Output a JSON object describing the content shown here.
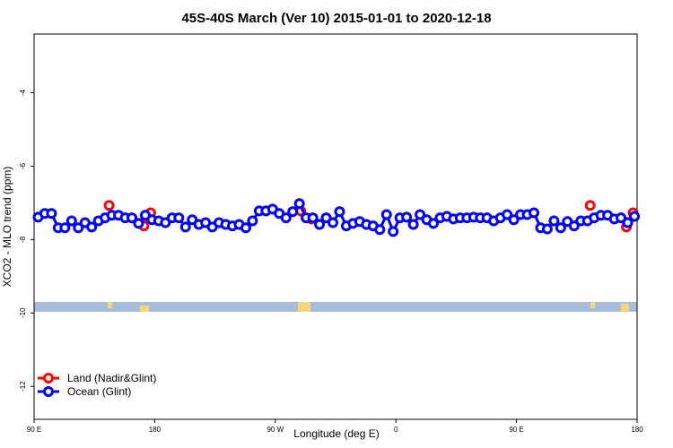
{
  "chart_data": {
    "type": "line",
    "title": "45S-40S March (Ver 10)   2015-01-01 to 2020-12-18",
    "x_label": "Longitude (deg E)",
    "y_label": "XCO2 - MLO trend (ppm)",
    "xlim": [
      90,
      540
    ],
    "xticks": [
      {
        "value": 90,
        "label": "90 E"
      },
      {
        "value": 180,
        "label": "180"
      },
      {
        "value": 270,
        "label": "90 W"
      },
      {
        "value": 360,
        "label": "0"
      },
      {
        "value": 450,
        "label": "90 E"
      },
      {
        "value": 540,
        "label": "180"
      }
    ],
    "ylim": [
      -12.9,
      -2.4
    ],
    "yticks": [
      -4,
      -6,
      -8,
      -10,
      -12
    ],
    "legend": "bottom-left",
    "series": [
      {
        "name": "Land (Nadir&Glint)",
        "color": "#ff0000",
        "x": [
          146,
          172,
          177,
          289,
          293,
          297,
          505,
          532,
          537
        ],
        "values": [
          -7.07,
          -7.63,
          -7.27,
          -7.22,
          -7.41,
          -7.44,
          -7.07,
          -7.66,
          -7.27
        ]
      },
      {
        "name": "Ocean (Glint)",
        "color": "#0000ff",
        "x": [
          93,
          98,
          103,
          108,
          113,
          118,
          123,
          128,
          133,
          138,
          143,
          148,
          153,
          158,
          163,
          168,
          173,
          178,
          183,
          188,
          193,
          198,
          203,
          208,
          213,
          218,
          223,
          228,
          233,
          238,
          243,
          248,
          253,
          258,
          263,
          268,
          273,
          278,
          283,
          288,
          293,
          298,
          303,
          308,
          313,
          318,
          323,
          328,
          333,
          338,
          343,
          348,
          353,
          358,
          363,
          368,
          373,
          378,
          383,
          388,
          393,
          398,
          403,
          408,
          413,
          418,
          423,
          428,
          433,
          438,
          443,
          448,
          453,
          458,
          463,
          468,
          473,
          478,
          483,
          488,
          493,
          498,
          503,
          508,
          513,
          518,
          523,
          528,
          533,
          538
        ],
        "values": [
          -7.39,
          -7.29,
          -7.29,
          -7.68,
          -7.68,
          -7.49,
          -7.68,
          -7.54,
          -7.66,
          -7.49,
          -7.41,
          -7.34,
          -7.34,
          -7.41,
          -7.41,
          -7.56,
          -7.34,
          -7.46,
          -7.49,
          -7.54,
          -7.41,
          -7.41,
          -7.66,
          -7.46,
          -7.59,
          -7.54,
          -7.66,
          -7.54,
          -7.59,
          -7.63,
          -7.59,
          -7.68,
          -7.49,
          -7.22,
          -7.22,
          -7.17,
          -7.29,
          -7.41,
          -7.24,
          -7.02,
          -7.41,
          -7.41,
          -7.59,
          -7.41,
          -7.54,
          -7.24,
          -7.63,
          -7.56,
          -7.51,
          -7.59,
          -7.63,
          -7.73,
          -7.32,
          -7.78,
          -7.41,
          -7.39,
          -7.59,
          -7.32,
          -7.46,
          -7.56,
          -7.41,
          -7.37,
          -7.44,
          -7.41,
          -7.41,
          -7.39,
          -7.41,
          -7.41,
          -7.49,
          -7.41,
          -7.32,
          -7.46,
          -7.32,
          -7.32,
          -7.27,
          -7.68,
          -7.71,
          -7.49,
          -7.68,
          -7.51,
          -7.63,
          -7.49,
          -7.49,
          -7.41,
          -7.34,
          -7.34,
          -7.44,
          -7.41,
          -7.54,
          -7.37
        ]
      }
    ]
  }
}
